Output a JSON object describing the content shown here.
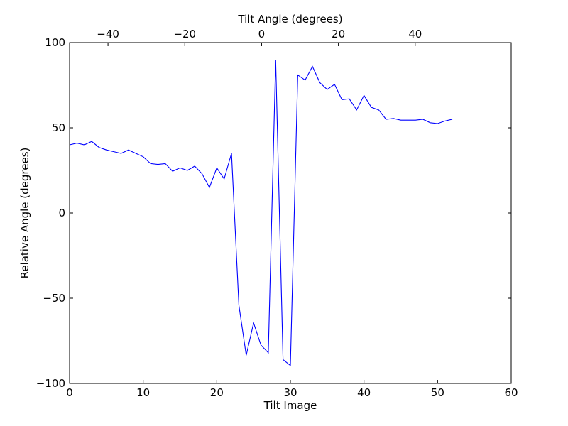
{
  "chart_data": {
    "type": "line",
    "xlabel": "Tilt Image",
    "ylabel": "Relative Angle (degrees)",
    "top_xlabel": "Tilt Angle (degrees)",
    "xlim": [
      0,
      60
    ],
    "ylim": [
      -100,
      100
    ],
    "top_xlim": [
      -50,
      65
    ],
    "x_ticks": [
      "0",
      "10",
      "20",
      "30",
      "40",
      "50",
      "60"
    ],
    "y_ticks": [
      "−100",
      "−50",
      "0",
      "50",
      "100"
    ],
    "top_x_ticks": [
      "−40",
      "−20",
      "0",
      "20",
      "40"
    ],
    "grid": false,
    "series": [
      {
        "color": "#0000ff",
        "x": [
          0,
          1,
          2,
          3,
          4,
          5,
          6,
          7,
          8,
          9,
          10,
          11,
          12,
          13,
          14,
          15,
          16,
          17,
          18,
          19,
          20,
          21,
          22,
          23,
          24,
          25,
          26,
          27,
          28,
          29,
          30,
          31,
          32,
          33,
          34,
          35,
          36,
          37,
          38,
          39,
          40,
          41,
          42,
          43,
          44,
          45,
          46,
          47,
          48,
          49,
          50,
          51,
          52
        ],
        "y": [
          40,
          41,
          40,
          42,
          38.5,
          37,
          36,
          35,
          37,
          35,
          33,
          29,
          28.5,
          29,
          24.5,
          26.5,
          25,
          27.5,
          23,
          15,
          26.5,
          20,
          35,
          -54,
          -83.5,
          -64.5,
          -77.5,
          -82,
          90,
          -86,
          -89.5,
          81,
          78,
          86,
          76.5,
          72.5,
          75.5,
          66.5,
          67,
          60.5,
          69,
          62,
          60.5,
          55,
          55.5,
          54.5,
          54.5,
          54.5,
          55,
          53,
          52.5,
          54,
          55
        ]
      }
    ]
  }
}
